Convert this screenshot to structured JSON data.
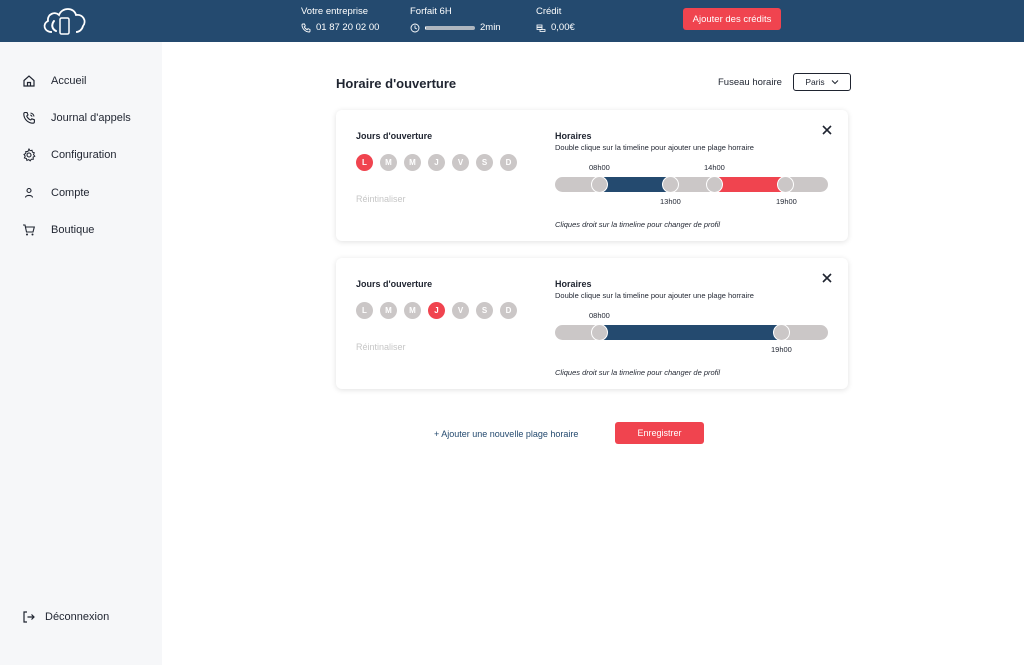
{
  "header": {
    "company_label": "Votre entreprise",
    "phone": "01 87 20 02 00",
    "plan_label": "Forfait 6H",
    "plan_usage": "2min",
    "plan_usage_fraction": 0.006,
    "credit_label": "Crédit",
    "credit_value": "0,00€",
    "add_credits_label": "Ajouter des crédits"
  },
  "sidebar": {
    "items": [
      {
        "label": "Accueil",
        "icon": "home-icon"
      },
      {
        "label": "Journal d'appels",
        "icon": "phone-call-icon"
      },
      {
        "label": "Configuration",
        "icon": "gear-icon"
      },
      {
        "label": "Compte",
        "icon": "user-icon"
      },
      {
        "label": "Boutique",
        "icon": "cart-icon"
      }
    ],
    "logout_label": "Déconnexion"
  },
  "main": {
    "title": "Horaire d'ouverture",
    "timezone_label": "Fuseau horaire",
    "timezone_value": "Paris",
    "schedules": [
      {
        "days_title": "Jours d'ouverture",
        "days": [
          {
            "letter": "L",
            "active": true
          },
          {
            "letter": "M",
            "active": false
          },
          {
            "letter": "M",
            "active": false
          },
          {
            "letter": "J",
            "active": false
          },
          {
            "letter": "V",
            "active": false
          },
          {
            "letter": "S",
            "active": false
          },
          {
            "letter": "D",
            "active": false
          }
        ],
        "reset_label": "Réintinaliser",
        "hours_title": "Horaires",
        "hours_hint": "Double clique sur la timeline pour ajouter une plage horraire",
        "ranges": [
          {
            "start": "08h00",
            "end": "13h00",
            "profile": "blue"
          },
          {
            "start": "14h00",
            "end": "19h00",
            "profile": "red"
          }
        ],
        "profile_hint": "Cliques droit sur la timeline pour changer de profil"
      },
      {
        "days_title": "Jours d'ouverture",
        "days": [
          {
            "letter": "L",
            "active": false
          },
          {
            "letter": "M",
            "active": false
          },
          {
            "letter": "M",
            "active": false
          },
          {
            "letter": "J",
            "active": true
          },
          {
            "letter": "V",
            "active": false
          },
          {
            "letter": "S",
            "active": false
          },
          {
            "letter": "D",
            "active": false
          }
        ],
        "reset_label": "Réintinaliser",
        "hours_title": "Horaires",
        "hours_hint": "Double clique sur la timeline pour ajouter une plage horraire",
        "ranges": [
          {
            "start": "08h00",
            "end": "19h00",
            "profile": "blue"
          }
        ],
        "profile_hint": "Cliques droit sur la timeline pour changer de profil"
      }
    ],
    "add_range_label": "+ Ajouter une nouvelle plage horaire",
    "save_label": "Enregistrer"
  },
  "colors": {
    "brand_navy": "#244a6f",
    "accent_red": "#f0444f",
    "inactive_grey": "#cbc7c7"
  }
}
